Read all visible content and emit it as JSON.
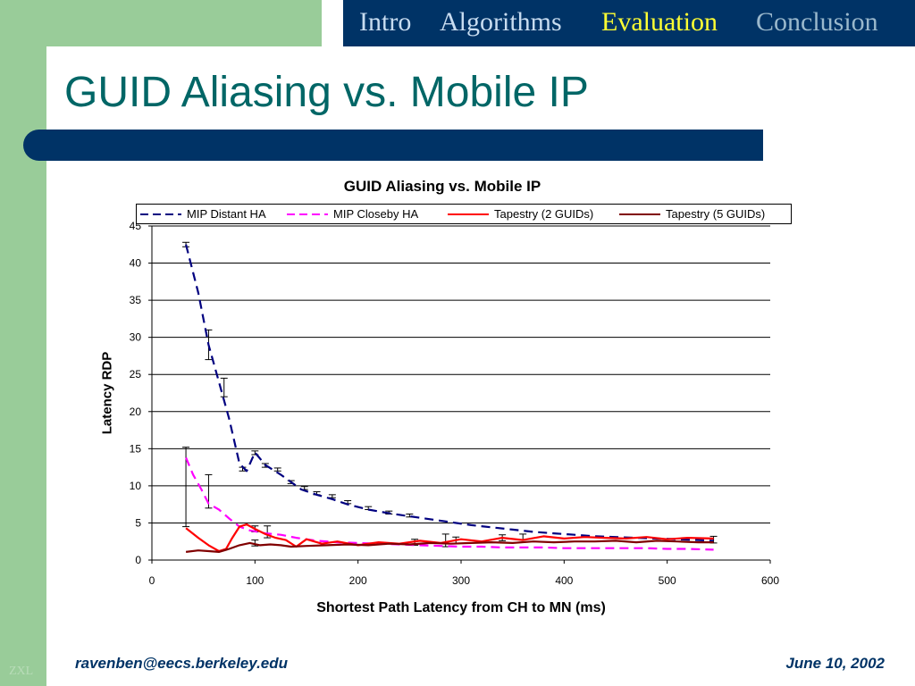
{
  "nav": {
    "items": [
      {
        "label": "Intro",
        "color": "#c8dcf0"
      },
      {
        "label": "Algorithms",
        "color": "#c8dcf0"
      },
      {
        "label": "Evaluation",
        "color": "#ffff33"
      },
      {
        "label": "Conclusion",
        "color": "#9ab8cc"
      }
    ]
  },
  "slide": {
    "title": "GUID Aliasing vs. Mobile IP",
    "footer_email": "ravenben@eecs.berkeley.edu",
    "footer_date": "June 10, 2002",
    "watermark": "ZXL"
  },
  "colors": {
    "sidebar": "#99cc99",
    "nav_background": "#003366",
    "title_text": "#006666"
  },
  "chart_data": {
    "type": "line",
    "title": "GUID Aliasing vs. Mobile IP",
    "xlabel": "Shortest Path Latency from CH to MN (ms)",
    "ylabel": "Latency RDP",
    "xlim": [
      0,
      600
    ],
    "ylim": [
      0,
      45
    ],
    "xticks": [
      0,
      100,
      200,
      300,
      400,
      500,
      600
    ],
    "yticks": [
      0,
      5,
      10,
      15,
      20,
      25,
      30,
      35,
      40,
      45
    ],
    "grid": "horizontal",
    "legend_position": "top",
    "series": [
      {
        "name": "MIP Distant HA",
        "color": "#000080",
        "dash": "dash",
        "x": [
          33,
          45,
          55,
          65,
          75,
          85,
          92,
          100,
          110,
          125,
          135,
          145,
          160,
          175,
          190,
          210,
          230,
          250,
          270,
          290,
          310,
          330,
          350,
          370,
          390,
          410,
          430,
          450,
          470,
          490,
          510,
          530,
          545
        ],
        "y": [
          42.5,
          36,
          29,
          24,
          19,
          13,
          12,
          14.5,
          12.8,
          11.5,
          10.5,
          9.5,
          8.8,
          8.2,
          7.5,
          6.8,
          6.3,
          5.9,
          5.5,
          5.1,
          4.7,
          4.4,
          4.1,
          3.8,
          3.6,
          3.4,
          3.2,
          3.1,
          3,
          2.9,
          2.8,
          2.7,
          2.6
        ],
        "error_bars": [
          {
            "x": 33,
            "low": 42.2,
            "high": 42.8
          },
          {
            "x": 55,
            "low": 27,
            "high": 31
          },
          {
            "x": 70,
            "low": 22,
            "high": 24.5
          },
          {
            "x": 88,
            "low": 12,
            "high": 12.5
          },
          {
            "x": 100,
            "low": 14.2,
            "high": 14.7
          },
          {
            "x": 110,
            "low": 12.5,
            "high": 13
          },
          {
            "x": 122,
            "low": 12,
            "high": 12.4
          },
          {
            "x": 135,
            "low": 10.3,
            "high": 10.7
          },
          {
            "x": 148,
            "low": 9.5,
            "high": 9.9
          },
          {
            "x": 160,
            "low": 8.8,
            "high": 9.2
          },
          {
            "x": 175,
            "low": 8.4,
            "high": 8.8
          },
          {
            "x": 190,
            "low": 7.6,
            "high": 8
          },
          {
            "x": 210,
            "low": 6.8,
            "high": 7.2
          },
          {
            "x": 230,
            "low": 6.2,
            "high": 6.6
          },
          {
            "x": 250,
            "low": 5.8,
            "high": 6.2
          }
        ]
      },
      {
        "name": "MIP Closeby HA",
        "color": "#ff00ff",
        "dash": "dash",
        "x": [
          33,
          40,
          48,
          55,
          65,
          75,
          85,
          95,
          110,
          125,
          140,
          160,
          180,
          200,
          220,
          240,
          260,
          280,
          300,
          320,
          340,
          360,
          380,
          400,
          420,
          440,
          460,
          480,
          500,
          520,
          545
        ],
        "y": [
          13.8,
          11.5,
          9.5,
          7.6,
          6.8,
          5.6,
          4.5,
          4,
          3.6,
          3.4,
          3,
          2.6,
          2.4,
          2.3,
          2.2,
          2.1,
          2,
          1.9,
          1.8,
          1.8,
          1.7,
          1.7,
          1.7,
          1.6,
          1.6,
          1.6,
          1.6,
          1.6,
          1.5,
          1.5,
          1.4
        ],
        "error_bars": [
          {
            "x": 33,
            "low": 4.5,
            "high": 15.2
          },
          {
            "x": 55,
            "low": 7,
            "high": 11.5
          }
        ]
      },
      {
        "name": "Tapestry (2 GUIDs)",
        "color": "#ff0000",
        "dash": "solid",
        "x": [
          33,
          45,
          55,
          65,
          72,
          78,
          85,
          92,
          100,
          110,
          120,
          130,
          140,
          150,
          165,
          180,
          200,
          220,
          240,
          260,
          280,
          300,
          320,
          340,
          360,
          380,
          400,
          420,
          440,
          460,
          480,
          500,
          520,
          545
        ],
        "y": [
          4.3,
          3,
          2,
          1.2,
          1.5,
          3,
          4.5,
          4.8,
          4.2,
          3.5,
          3,
          2.7,
          1.8,
          2.8,
          2.2,
          2.5,
          2,
          2.4,
          2.2,
          2.6,
          2.3,
          2.8,
          2.5,
          3,
          2.7,
          3.2,
          2.9,
          3.1,
          3,
          2.9,
          3.1,
          2.8,
          3,
          2.9
        ],
        "error_bars": [
          {
            "x": 100,
            "low": 3.8,
            "high": 4.6
          },
          {
            "x": 112,
            "low": 3,
            "high": 4.6
          },
          {
            "x": 285,
            "low": 1.8,
            "high": 3.5
          },
          {
            "x": 340,
            "low": 2.6,
            "high": 3.4
          },
          {
            "x": 360,
            "low": 2.7,
            "high": 3.5
          },
          {
            "x": 545,
            "low": 2.3,
            "high": 3.2
          }
        ]
      },
      {
        "name": "Tapestry (5 GUIDs)",
        "color": "#800000",
        "dash": "solid",
        "x": [
          33,
          45,
          55,
          65,
          75,
          85,
          95,
          105,
          115,
          125,
          135,
          150,
          170,
          190,
          210,
          230,
          250,
          270,
          290,
          310,
          330,
          350,
          370,
          390,
          410,
          430,
          450,
          470,
          490,
          510,
          530,
          545
        ],
        "y": [
          1.1,
          1.3,
          1.2,
          1.1,
          1.5,
          2,
          2.3,
          2,
          2.1,
          2,
          1.8,
          1.9,
          2,
          2.1,
          2,
          2.2,
          2.1,
          2.3,
          2.2,
          2.3,
          2.4,
          2.3,
          2.5,
          2.4,
          2.5,
          2.5,
          2.6,
          2.4,
          2.6,
          2.5,
          2.4,
          2.4
        ],
        "error_bars": [
          {
            "x": 100,
            "low": 1.9,
            "high": 2.7
          },
          {
            "x": 255,
            "low": 2,
            "high": 2.8
          },
          {
            "x": 295,
            "low": 2.2,
            "high": 3.1
          }
        ]
      }
    ]
  }
}
